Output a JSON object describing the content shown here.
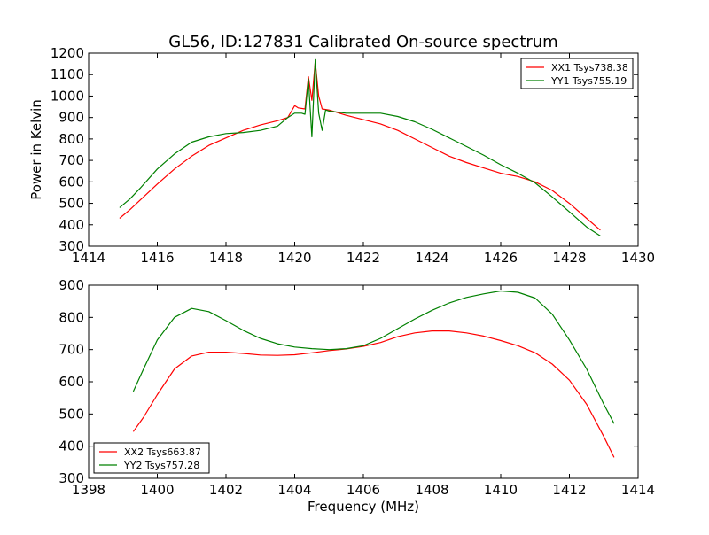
{
  "chart_data": [
    {
      "type": "line",
      "title": "GL56, ID:127831 Calibrated On-source spectrum",
      "xlabel": "",
      "ylabel": "Power in Kelvin",
      "xlim": [
        1414,
        1430
      ],
      "ylim": [
        300,
        1200
      ],
      "xticks": [
        "1414",
        "1416",
        "1418",
        "1420",
        "1422",
        "1424",
        "1426",
        "1428",
        "1430"
      ],
      "yticks": [
        "300",
        "400",
        "500",
        "600",
        "700",
        "800",
        "900",
        "1000",
        "1100",
        "1200"
      ],
      "legend": "top-right",
      "grid": false,
      "series": [
        {
          "name": "XX1 Tsys738.38",
          "color": "#ff0000",
          "points": [
            [
              1414.9,
              430
            ],
            [
              1415.2,
              470
            ],
            [
              1415.5,
              515
            ],
            [
              1416.0,
              590
            ],
            [
              1416.5,
              660
            ],
            [
              1417.0,
              720
            ],
            [
              1417.5,
              770
            ],
            [
              1418.0,
              805
            ],
            [
              1418.5,
              840
            ],
            [
              1419.0,
              865
            ],
            [
              1419.5,
              885
            ],
            [
              1419.8,
              900
            ],
            [
              1420.0,
              955
            ],
            [
              1420.1,
              945
            ],
            [
              1420.3,
              940
            ],
            [
              1420.4,
              1090
            ],
            [
              1420.5,
              980
            ],
            [
              1420.6,
              1160
            ],
            [
              1420.7,
              1000
            ],
            [
              1420.8,
              940
            ],
            [
              1421.0,
              935
            ],
            [
              1421.5,
              910
            ],
            [
              1422.0,
              890
            ],
            [
              1422.5,
              870
            ],
            [
              1423.0,
              840
            ],
            [
              1423.5,
              800
            ],
            [
              1424.0,
              760
            ],
            [
              1424.5,
              720
            ],
            [
              1425.0,
              690
            ],
            [
              1425.5,
              665
            ],
            [
              1426.0,
              640
            ],
            [
              1426.5,
              625
            ],
            [
              1427.0,
              600
            ],
            [
              1427.5,
              560
            ],
            [
              1428.0,
              500
            ],
            [
              1428.5,
              430
            ],
            [
              1428.9,
              375
            ]
          ]
        },
        {
          "name": "YY1 Tsys755.19",
          "color": "#008000",
          "points": [
            [
              1414.9,
              480
            ],
            [
              1415.2,
              520
            ],
            [
              1415.5,
              570
            ],
            [
              1416.0,
              660
            ],
            [
              1416.5,
              730
            ],
            [
              1417.0,
              785
            ],
            [
              1417.5,
              810
            ],
            [
              1418.0,
              825
            ],
            [
              1418.5,
              830
            ],
            [
              1419.0,
              840
            ],
            [
              1419.5,
              860
            ],
            [
              1419.8,
              900
            ],
            [
              1420.0,
              920
            ],
            [
              1420.2,
              920
            ],
            [
              1420.3,
              915
            ],
            [
              1420.4,
              1080
            ],
            [
              1420.5,
              810
            ],
            [
              1420.6,
              1170
            ],
            [
              1420.7,
              920
            ],
            [
              1420.8,
              840
            ],
            [
              1420.9,
              935
            ],
            [
              1421.0,
              930
            ],
            [
              1421.5,
              920
            ],
            [
              1422.0,
              920
            ],
            [
              1422.5,
              920
            ],
            [
              1423.0,
              905
            ],
            [
              1423.5,
              880
            ],
            [
              1424.0,
              845
            ],
            [
              1424.5,
              805
            ],
            [
              1425.0,
              765
            ],
            [
              1425.5,
              725
            ],
            [
              1426.0,
              680
            ],
            [
              1426.5,
              640
            ],
            [
              1427.0,
              595
            ],
            [
              1427.5,
              530
            ],
            [
              1428.0,
              460
            ],
            [
              1428.5,
              390
            ],
            [
              1428.9,
              348
            ]
          ]
        }
      ]
    },
    {
      "type": "line",
      "title": "",
      "xlabel": "Frequency (MHz)",
      "ylabel": "",
      "xlim": [
        1398,
        1414
      ],
      "ylim": [
        300,
        900
      ],
      "xticks": [
        "1398",
        "1400",
        "1402",
        "1404",
        "1406",
        "1408",
        "1410",
        "1412",
        "1414"
      ],
      "yticks": [
        "300",
        "400",
        "500",
        "600",
        "700",
        "800",
        "900"
      ],
      "legend": "bottom-left",
      "grid": false,
      "series": [
        {
          "name": "XX2 Tsys663.87",
          "color": "#ff0000",
          "points": [
            [
              1399.3,
              445
            ],
            [
              1399.6,
              490
            ],
            [
              1400.0,
              560
            ],
            [
              1400.5,
              640
            ],
            [
              1401.0,
              680
            ],
            [
              1401.5,
              692
            ],
            [
              1402.0,
              692
            ],
            [
              1402.5,
              688
            ],
            [
              1403.0,
              683
            ],
            [
              1403.5,
              682
            ],
            [
              1404.0,
              684
            ],
            [
              1404.5,
              690
            ],
            [
              1405.0,
              697
            ],
            [
              1405.5,
              702
            ],
            [
              1406.0,
              710
            ],
            [
              1406.5,
              722
            ],
            [
              1407.0,
              740
            ],
            [
              1407.5,
              752
            ],
            [
              1408.0,
              758
            ],
            [
              1408.5,
              758
            ],
            [
              1409.0,
              752
            ],
            [
              1409.5,
              742
            ],
            [
              1410.0,
              728
            ],
            [
              1410.5,
              712
            ],
            [
              1411.0,
              690
            ],
            [
              1411.5,
              655
            ],
            [
              1412.0,
              605
            ],
            [
              1412.5,
              530
            ],
            [
              1413.0,
              430
            ],
            [
              1413.3,
              365
            ]
          ]
        },
        {
          "name": "YY2 Tsys757.28",
          "color": "#008000",
          "points": [
            [
              1399.3,
              570
            ],
            [
              1399.6,
              640
            ],
            [
              1400.0,
              730
            ],
            [
              1400.5,
              800
            ],
            [
              1401.0,
              828
            ],
            [
              1401.5,
              818
            ],
            [
              1402.0,
              790
            ],
            [
              1402.5,
              760
            ],
            [
              1403.0,
              735
            ],
            [
              1403.5,
              718
            ],
            [
              1404.0,
              708
            ],
            [
              1404.5,
              703
            ],
            [
              1405.0,
              700
            ],
            [
              1405.5,
              703
            ],
            [
              1406.0,
              712
            ],
            [
              1406.5,
              735
            ],
            [
              1407.0,
              765
            ],
            [
              1407.5,
              795
            ],
            [
              1408.0,
              822
            ],
            [
              1408.5,
              845
            ],
            [
              1409.0,
              862
            ],
            [
              1409.5,
              873
            ],
            [
              1410.0,
              882
            ],
            [
              1410.5,
              878
            ],
            [
              1411.0,
              860
            ],
            [
              1411.5,
              810
            ],
            [
              1412.0,
              730
            ],
            [
              1412.5,
              640
            ],
            [
              1413.0,
              530
            ],
            [
              1413.3,
              470
            ]
          ]
        }
      ]
    }
  ]
}
